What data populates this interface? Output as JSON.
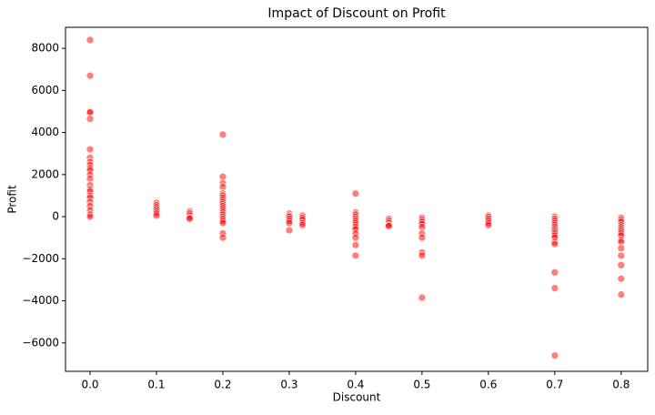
{
  "chart_data": {
    "type": "scatter",
    "title": "Impact of Discount on Profit",
    "x_label": "Discount",
    "y_label": "Profit",
    "color": "#ff0000",
    "grid": false,
    "xlim": [
      -0.037,
      0.84
    ],
    "xticks": [
      {
        "value": 0,
        "label": "0.0"
      },
      0.1,
      0.2,
      0.3,
      0.4,
      0.5,
      0.6,
      0.7,
      0.8
    ],
    "ylim": [
      -7350,
      9000
    ],
    "yticks": [
      {
        "value": -6000,
        "label": "−6000"
      },
      {
        "value": -4000,
        "label": "−4000"
      },
      {
        "value": -2000,
        "label": "−2000"
      },
      0,
      2000,
      4000,
      6000,
      8000
    ],
    "x": [
      0,
      0,
      0,
      0,
      0,
      0,
      0,
      0,
      0,
      0,
      0,
      0,
      0,
      0,
      0,
      0,
      0,
      0,
      0,
      0,
      0,
      0,
      0,
      0.1,
      0.1,
      0.1,
      0.1,
      0.1,
      0.1,
      0.1,
      0.15,
      0.15,
      0.15,
      0.15,
      0.15,
      0.2,
      0.2,
      0.2,
      0.2,
      0.2,
      0.2,
      0.2,
      0.2,
      0.2,
      0.2,
      0.2,
      0.2,
      0.2,
      0.2,
      0.2,
      0.2,
      0.2,
      0.2,
      0.2,
      0.2,
      0.2,
      0.3,
      0.3,
      0.3,
      0.3,
      0.3,
      0.3,
      0.3,
      0.32,
      0.32,
      0.32,
      0.32,
      0.32,
      0.4,
      0.4,
      0.4,
      0.4,
      0.4,
      0.4,
      0.4,
      0.4,
      0.4,
      0.4,
      0.4,
      0.4,
      0.4,
      0.4,
      0.45,
      0.45,
      0.45,
      0.45,
      0.45,
      0.5,
      0.5,
      0.5,
      0.5,
      0.5,
      0.5,
      0.5,
      0.5,
      0.5,
      0.5,
      0.6,
      0.6,
      0.6,
      0.6,
      0.6,
      0.6,
      0.7,
      0.7,
      0.7,
      0.7,
      0.7,
      0.7,
      0.7,
      0.7,
      0.7,
      0.7,
      0.7,
      0.7,
      0.7,
      0.7,
      0.7,
      0.7,
      0.8,
      0.8,
      0.8,
      0.8,
      0.8,
      0.8,
      0.8,
      0.8,
      0.8,
      0.8,
      0.8,
      0.8,
      0.8,
      0.8,
      0.8,
      0.8
    ],
    "values": [
      8400,
      6700,
      5000,
      4950,
      4650,
      3200,
      2800,
      2600,
      2450,
      2300,
      2200,
      2000,
      1800,
      1500,
      1300,
      1200,
      1000,
      900,
      700,
      500,
      300,
      100,
      0,
      650,
      550,
      450,
      350,
      250,
      150,
      50,
      250,
      150,
      50,
      -50,
      -100,
      3900,
      1900,
      1600,
      1400,
      1100,
      1000,
      900,
      800,
      700,
      600,
      500,
      400,
      300,
      200,
      100,
      0,
      -100,
      -200,
      -300,
      -800,
      -1000,
      150,
      50,
      0,
      -100,
      -200,
      -300,
      -650,
      50,
      -50,
      -150,
      -300,
      -400,
      1100,
      200,
      100,
      0,
      -100,
      -200,
      -300,
      -400,
      -500,
      -600,
      -800,
      -1000,
      -1350,
      -1850,
      -100,
      -200,
      -300,
      -400,
      -450,
      -50,
      -150,
      -250,
      -350,
      -500,
      -800,
      -1000,
      -1700,
      -1850,
      -3850,
      50,
      0,
      -100,
      -200,
      -300,
      -400,
      0,
      -100,
      -200,
      -300,
      -400,
      -500,
      -600,
      -700,
      -800,
      -900,
      -1000,
      -1200,
      -1300,
      -2650,
      -3400,
      -6600,
      -50,
      -150,
      -250,
      -400,
      -500,
      -600,
      -700,
      -800,
      -900,
      -1100,
      -1200,
      -1500,
      -1850,
      -2300,
      -2950,
      -3700
    ]
  }
}
